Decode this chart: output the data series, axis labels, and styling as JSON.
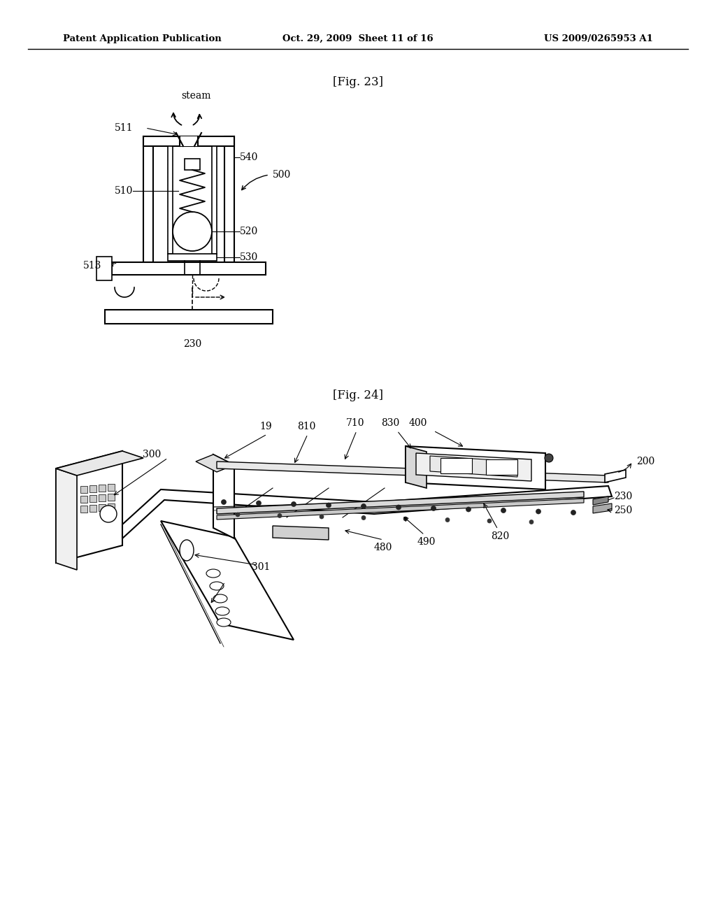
{
  "bg_color": "#ffffff",
  "text_color": "#000000",
  "line_color": "#000000",
  "header_left": "Patent Application Publication",
  "header_center": "Oct. 29, 2009  Sheet 11 of 16",
  "header_right": "US 2009/0265953 A1",
  "fig23_label": "[Fig. 23]",
  "fig24_label": "[Fig. 24]"
}
